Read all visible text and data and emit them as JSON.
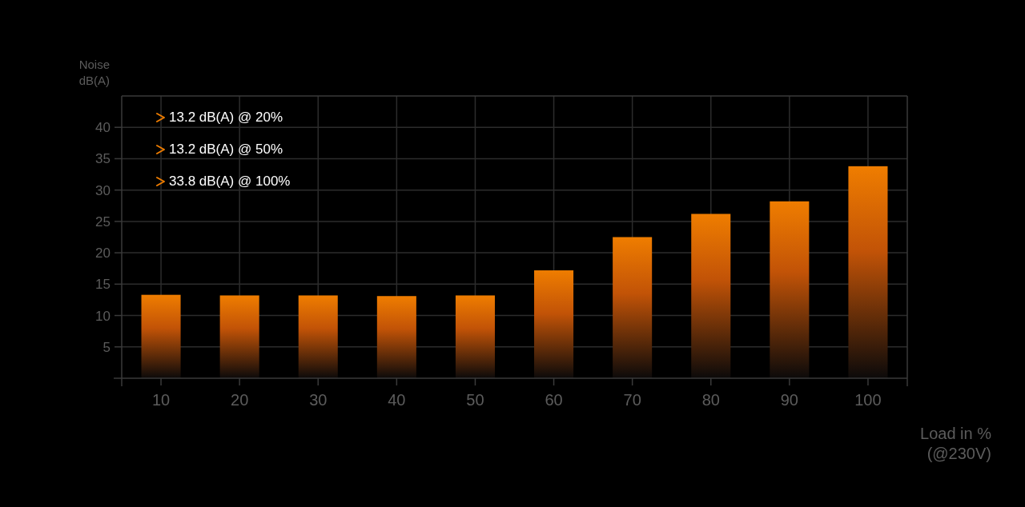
{
  "chart_data": {
    "type": "bar",
    "ylabel": "Noise dB(A)",
    "xlabel": "Load in % (@230V)",
    "categories": [
      "10",
      "20",
      "30",
      "40",
      "50",
      "60",
      "70",
      "80",
      "90",
      "100"
    ],
    "values": [
      13.3,
      13.2,
      13.2,
      13.1,
      13.2,
      17.2,
      22.5,
      26.2,
      28.2,
      33.8
    ],
    "color": "#ef7d00",
    "ylim": [
      0,
      45
    ],
    "yticks": [
      5,
      10,
      15,
      20,
      25,
      30,
      35,
      40
    ],
    "grid": true,
    "annotations": [
      "13.2 dB(A) @ 20%",
      "13.2 dB(A) @ 50%",
      "33.8 dB(A) @ 100%"
    ]
  }
}
